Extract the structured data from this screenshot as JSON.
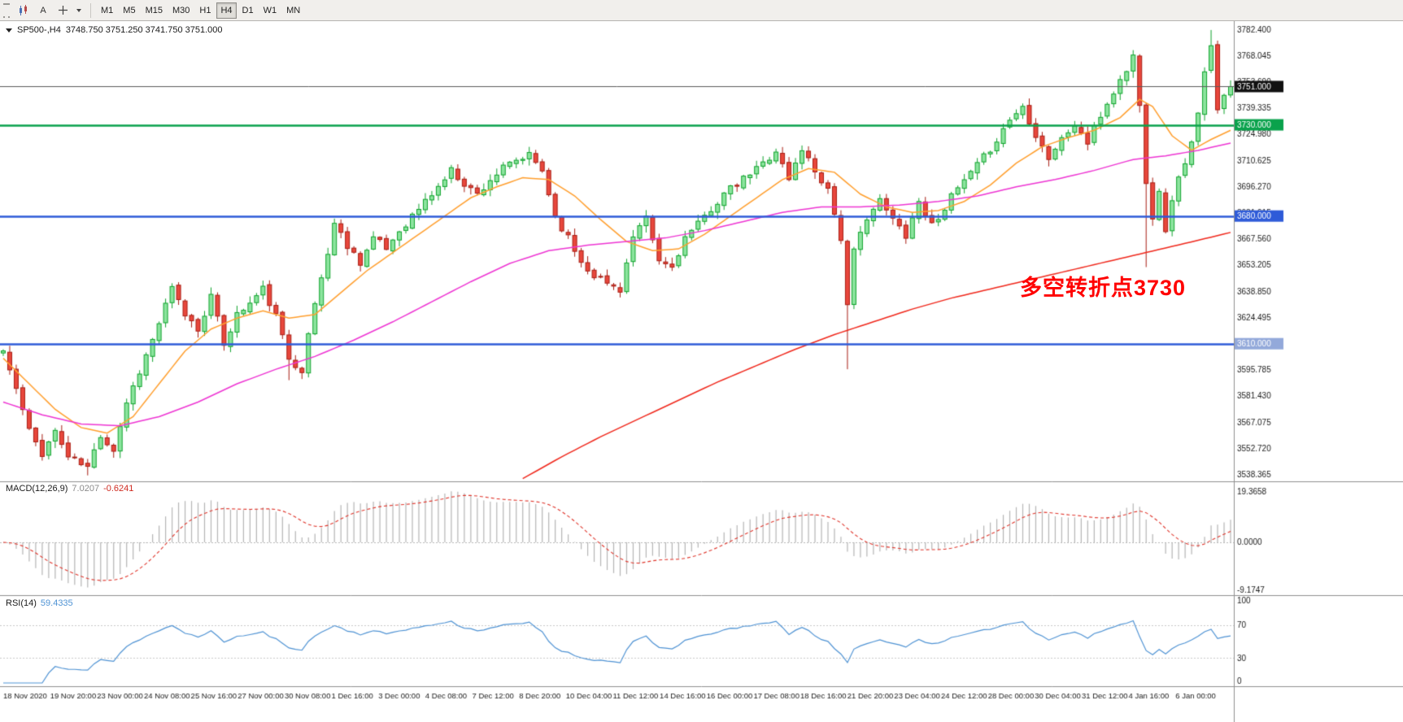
{
  "toolbar": {
    "cursor_label": "A",
    "timeframes": [
      {
        "label": "M1"
      },
      {
        "label": "M5"
      },
      {
        "label": "M15"
      },
      {
        "label": "M30"
      },
      {
        "label": "H1"
      },
      {
        "label": "H4"
      },
      {
        "label": "D1"
      },
      {
        "label": "W1"
      },
      {
        "label": "MN"
      }
    ],
    "active_timeframe": "H4"
  },
  "main_chart": {
    "header": {
      "symbol": "SP500-,H4",
      "ohlc": "3748.750 3751.250 3741.750 3751.000"
    },
    "annotation": {
      "text": "多空转折点3730",
      "color": "#ff0000"
    }
  },
  "macd_panel": {
    "label": "MACD(12,26,9)",
    "value_main": "7.0207",
    "value_signal": "-0.6241"
  },
  "rsi_panel": {
    "label": "RSI(14)",
    "value": "59.4335"
  },
  "chart_data": {
    "type": "candlestick",
    "symbol": "SP500-",
    "timeframe": "H4",
    "ohlc_current": {
      "open": 3748.75,
      "high": 3751.25,
      "low": 3741.75,
      "close": 3751.0
    },
    "n_candles": 190,
    "noise_seed": 11,
    "up_color": "#0fa32c",
    "up_fill": "#8ce49e",
    "down_color": "#a81d13",
    "down_fill": "#e8473c",
    "price_axis": {
      "top": 3782.4,
      "step": 14.355,
      "labels": [
        "3782.400",
        "3768.045",
        "3753.690",
        "3739.335",
        "3724.980",
        "3710.625",
        "3696.270",
        "3681.915",
        "3667.560",
        "3653.205",
        "3638.850",
        "3624.495",
        "3610.140",
        "3595.785",
        "3581.430",
        "3567.075",
        "3552.720",
        "3538.365"
      ]
    },
    "price_anchors": [
      [
        0,
        3606
      ],
      [
        2,
        3585
      ],
      [
        4,
        3562
      ],
      [
        6,
        3550
      ],
      [
        8,
        3562
      ],
      [
        10,
        3548
      ],
      [
        13,
        3542
      ],
      [
        15,
        3560
      ],
      [
        17,
        3552
      ],
      [
        19,
        3578
      ],
      [
        21,
        3595
      ],
      [
        23,
        3612
      ],
      [
        26,
        3640
      ],
      [
        28,
        3626
      ],
      [
        30,
        3618
      ],
      [
        32,
        3636
      ],
      [
        34,
        3610
      ],
      [
        36,
        3626
      ],
      [
        38,
        3632
      ],
      [
        40,
        3640
      ],
      [
        42,
        3625
      ],
      [
        44,
        3602
      ],
      [
        46,
        3596
      ],
      [
        48,
        3632
      ],
      [
        50,
        3660
      ],
      [
        51,
        3676
      ],
      [
        53,
        3664
      ],
      [
        55,
        3655
      ],
      [
        57,
        3668
      ],
      [
        59,
        3662
      ],
      [
        61,
        3672
      ],
      [
        63,
        3680
      ],
      [
        65,
        3688
      ],
      [
        67,
        3696
      ],
      [
        69,
        3705
      ],
      [
        71,
        3698
      ],
      [
        73,
        3692
      ],
      [
        75,
        3700
      ],
      [
        77,
        3706
      ],
      [
        79,
        3710
      ],
      [
        81,
        3713
      ],
      [
        83,
        3705
      ],
      [
        85,
        3680
      ],
      [
        87,
        3668
      ],
      [
        89,
        3655
      ],
      [
        91,
        3648
      ],
      [
        93,
        3643
      ],
      [
        95,
        3640
      ],
      [
        97,
        3668
      ],
      [
        99,
        3678
      ],
      [
        101,
        3655
      ],
      [
        103,
        3652
      ],
      [
        105,
        3668
      ],
      [
        107,
        3675
      ],
      [
        109,
        3684
      ],
      [
        111,
        3692
      ],
      [
        113,
        3697
      ],
      [
        115,
        3703
      ],
      [
        117,
        3709
      ],
      [
        119,
        3716
      ],
      [
        121,
        3700
      ],
      [
        123,
        3717
      ],
      [
        125,
        3705
      ],
      [
        127,
        3695
      ],
      [
        129,
        3668
      ],
      [
        130,
        3630
      ],
      [
        131,
        3660
      ],
      [
        133,
        3680
      ],
      [
        135,
        3688
      ],
      [
        137,
        3678
      ],
      [
        139,
        3670
      ],
      [
        141,
        3688
      ],
      [
        143,
        3675
      ],
      [
        145,
        3685
      ],
      [
        147,
        3695
      ],
      [
        149,
        3703
      ],
      [
        151,
        3712
      ],
      [
        153,
        3722
      ],
      [
        155,
        3733
      ],
      [
        157,
        3740
      ],
      [
        159,
        3725
      ],
      [
        161,
        3712
      ],
      [
        163,
        3722
      ],
      [
        165,
        3730
      ],
      [
        167,
        3720
      ],
      [
        169,
        3735
      ],
      [
        171,
        3748
      ],
      [
        173,
        3760
      ],
      [
        174,
        3768
      ],
      [
        175,
        3740
      ],
      [
        176,
        3700
      ],
      [
        177,
        3680
      ],
      [
        178,
        3695
      ],
      [
        179,
        3670
      ],
      [
        180,
        3690
      ],
      [
        181,
        3700
      ],
      [
        182,
        3710
      ],
      [
        183,
        3720
      ],
      [
        184,
        3735
      ],
      [
        185,
        3758
      ],
      [
        186,
        3772
      ],
      [
        187,
        3740
      ],
      [
        188,
        3748
      ],
      [
        189,
        3751
      ]
    ],
    "wick_overrides": {
      "13": {
        "low": 3537.8
      },
      "44": {
        "low": 3590
      },
      "130": {
        "low": 3596
      },
      "176": {
        "low": 3652
      },
      "186": {
        "high": 3782
      }
    },
    "horizontal_lines": [
      {
        "price": 3730,
        "color": "#0aa24c",
        "badge": "3730.000",
        "badge_bg": "#0aa24c"
      },
      {
        "price": 3680,
        "color": "#2e5bd8",
        "badge": "3680.000",
        "badge_bg": "#2e5bd8"
      },
      {
        "price": 3610,
        "color": "#2e5bd8",
        "badge": "3610.000",
        "badge_bg": "#93a9da"
      }
    ],
    "current_price": {
      "value": 3751.0,
      "badge": "3751.000",
      "line_color": "#5a5a5a",
      "badge_bg": "#111111"
    },
    "moving_averages": [
      {
        "name": "ma-fast",
        "color": "#ff9f2e",
        "anchors": [
          [
            0,
            3602
          ],
          [
            4,
            3588
          ],
          [
            8,
            3574
          ],
          [
            12,
            3564
          ],
          [
            16,
            3561
          ],
          [
            20,
            3570
          ],
          [
            24,
            3588
          ],
          [
            28,
            3606
          ],
          [
            32,
            3618
          ],
          [
            36,
            3624
          ],
          [
            40,
            3628
          ],
          [
            44,
            3624
          ],
          [
            48,
            3626
          ],
          [
            52,
            3638
          ],
          [
            56,
            3650
          ],
          [
            60,
            3660
          ],
          [
            64,
            3670
          ],
          [
            68,
            3680
          ],
          [
            72,
            3690
          ],
          [
            76,
            3696
          ],
          [
            80,
            3701
          ],
          [
            84,
            3700
          ],
          [
            88,
            3691
          ],
          [
            92,
            3678
          ],
          [
            96,
            3666
          ],
          [
            100,
            3661
          ],
          [
            104,
            3662
          ],
          [
            108,
            3670
          ],
          [
            112,
            3680
          ],
          [
            116,
            3690
          ],
          [
            120,
            3700
          ],
          [
            124,
            3706
          ],
          [
            128,
            3704
          ],
          [
            132,
            3692
          ],
          [
            136,
            3685
          ],
          [
            140,
            3682
          ],
          [
            144,
            3683
          ],
          [
            148,
            3688
          ],
          [
            152,
            3697
          ],
          [
            156,
            3709
          ],
          [
            160,
            3718
          ],
          [
            164,
            3723
          ],
          [
            168,
            3727
          ],
          [
            172,
            3734
          ],
          [
            175,
            3744
          ],
          [
            177,
            3740
          ],
          [
            180,
            3724
          ],
          [
            183,
            3716
          ],
          [
            186,
            3722
          ],
          [
            189,
            3727
          ]
        ]
      },
      {
        "name": "ma-mid",
        "color": "#ee35d3",
        "anchors": [
          [
            0,
            3578
          ],
          [
            6,
            3571
          ],
          [
            12,
            3566
          ],
          [
            18,
            3565
          ],
          [
            24,
            3570
          ],
          [
            30,
            3578
          ],
          [
            36,
            3588
          ],
          [
            42,
            3596
          ],
          [
            48,
            3603
          ],
          [
            54,
            3612
          ],
          [
            60,
            3622
          ],
          [
            66,
            3633
          ],
          [
            72,
            3644
          ],
          [
            78,
            3654
          ],
          [
            84,
            3661
          ],
          [
            90,
            3664
          ],
          [
            96,
            3666
          ],
          [
            102,
            3668
          ],
          [
            108,
            3672
          ],
          [
            114,
            3677
          ],
          [
            120,
            3682
          ],
          [
            126,
            3685
          ],
          [
            132,
            3685
          ],
          [
            138,
            3686
          ],
          [
            144,
            3688
          ],
          [
            150,
            3691
          ],
          [
            156,
            3696
          ],
          [
            162,
            3700
          ],
          [
            168,
            3705
          ],
          [
            174,
            3711
          ],
          [
            179,
            3713
          ],
          [
            184,
            3716
          ],
          [
            189,
            3720
          ]
        ]
      },
      {
        "name": "ma-slow",
        "color": "#f0281c",
        "anchors": [
          [
            80,
            3536
          ],
          [
            86,
            3548
          ],
          [
            92,
            3559
          ],
          [
            98,
            3569
          ],
          [
            104,
            3579
          ],
          [
            110,
            3589
          ],
          [
            116,
            3598
          ],
          [
            122,
            3607
          ],
          [
            128,
            3615
          ],
          [
            134,
            3622
          ],
          [
            140,
            3629
          ],
          [
            146,
            3635
          ],
          [
            152,
            3640
          ],
          [
            158,
            3645
          ],
          [
            164,
            3650
          ],
          [
            170,
            3655
          ],
          [
            176,
            3660
          ],
          [
            182,
            3665
          ],
          [
            189,
            3671
          ]
        ]
      }
    ],
    "x_axis": {
      "labels": [
        "18 Nov 2020",
        "19 Nov 20:00",
        "23 Nov 00:00",
        "24 Nov 08:00",
        "25 Nov 16:00",
        "27 Nov 00:00",
        "30 Nov 08:00",
        "1 Dec 16:00",
        "3 Dec 00:00",
        "4 Dec 08:00",
        "7 Dec 12:00",
        "8 Dec 20:00",
        "10 Dec 04:00",
        "11 Dec 12:00",
        "14 Dec 16:00",
        "16 Dec 00:00",
        "17 Dec 08:00",
        "18 Dec 16:00",
        "21 Dec 20:00",
        "23 Dec 04:00",
        "24 Dec 12:00",
        "28 Dec 00:00",
        "30 Dec 04:00",
        "31 Dec 12:00",
        "4 Jan 16:00",
        "6 Jan 00:00"
      ]
    },
    "macd": {
      "params": [
        12,
        26,
        9
      ],
      "main": 7.0207,
      "signal": -0.6241,
      "axis_labels": [
        "19.3658",
        "0.0000",
        "-9.1747"
      ],
      "histogram_color": "#b5b5b5",
      "signal_color": "#e0352b"
    },
    "rsi": {
      "period": 14,
      "value": 59.4335,
      "axis_labels": [
        "100",
        "70",
        "30",
        "0"
      ],
      "levels": [
        70,
        30
      ],
      "line_color": "#4f93d4"
    }
  }
}
